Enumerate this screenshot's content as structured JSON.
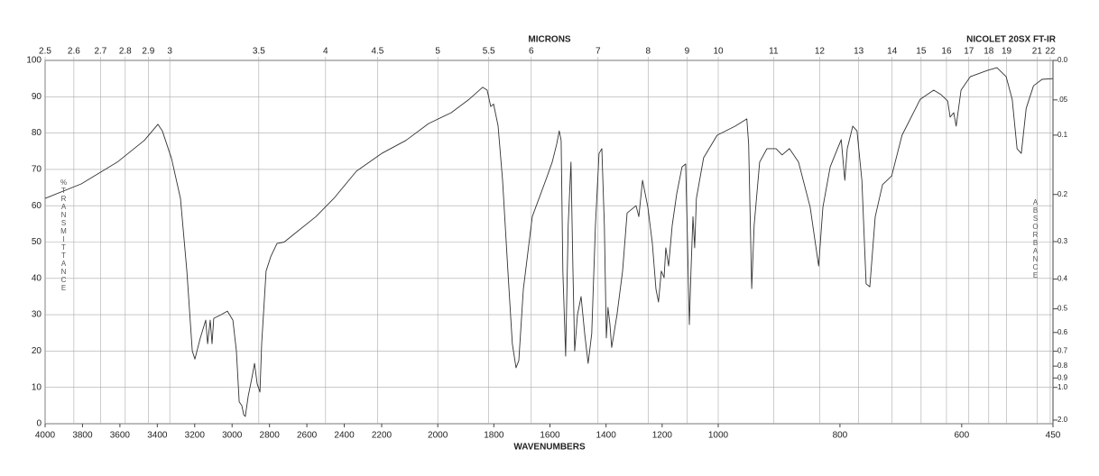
{
  "chart_data": {
    "type": "line",
    "title": "NICOLET 20SX FT-IR",
    "xlabel": "WAVENUMBERS",
    "x2label": "MICRONS",
    "ylabel": "%TRANSMITTANCE",
    "y2label": "ABSORBANCE",
    "xlim": [
      4000,
      450
    ],
    "x_scale_breaks": [
      2200,
      1000
    ],
    "ylim": [
      0,
      100
    ],
    "grid": true,
    "y2_scale": "absorbance",
    "xticks": [
      4000,
      3800,
      3600,
      3400,
      3200,
      3000,
      2800,
      2600,
      2400,
      2200,
      2000,
      1800,
      1600,
      1400,
      1200,
      1000,
      800,
      600,
      450
    ],
    "yticks": [
      0,
      10,
      20,
      30,
      40,
      50,
      60,
      70,
      80,
      90,
      100
    ],
    "x2ticks": [
      2.5,
      2.6,
      2.7,
      2.8,
      2.9,
      3,
      3.5,
      4,
      4.5,
      5,
      5.5,
      6,
      7,
      8,
      9,
      10,
      11,
      12,
      13,
      14,
      15,
      16,
      17,
      18,
      19,
      21,
      22
    ],
    "y2ticks": [
      {
        "value": 0,
        "label": "0.0"
      },
      {
        "value": 0.05,
        "label": ".05"
      },
      0.1,
      0.2,
      0.3,
      0.4,
      0.5,
      0.6,
      0.7,
      0.8,
      0.9,
      {
        "value": 1,
        "label": "1.0"
      },
      {
        "value": 2,
        "label": "2.0"
      }
    ],
    "x": [
      4000,
      3807,
      3614,
      3469,
      3397,
      3373,
      3324,
      3276,
      3242,
      3213,
      3199,
      3170,
      3141,
      3131,
      3117,
      3107,
      3098,
      3059,
      3025,
      2996,
      2977,
      2962,
      2948,
      2938,
      2929,
      2914,
      2895,
      2880,
      2866,
      2851,
      2842,
      2818,
      2793,
      2760,
      2721,
      2649,
      2552,
      2456,
      2335,
      2200,
      2113,
      2033,
      1952,
      1888,
      1840,
      1824,
      1811,
      1801,
      1785,
      1769,
      1750,
      1734,
      1721,
      1711,
      1695,
      1663,
      1615,
      1592,
      1576,
      1567,
      1560,
      1554,
      1544,
      1535,
      1525,
      1518,
      1512,
      1502,
      1489,
      1476,
      1464,
      1451,
      1438,
      1425,
      1415,
      1406,
      1399,
      1393,
      1386,
      1380,
      1361,
      1341,
      1325,
      1293,
      1283,
      1270,
      1251,
      1235,
      1222,
      1213,
      1203,
      1193,
      1187,
      1177,
      1164,
      1148,
      1129,
      1116,
      1110,
      1103,
      1097,
      1090,
      1084,
      1078,
      1052,
      1004,
      972,
      953,
      950,
      945,
      941,
      932,
      920,
      905,
      895,
      883,
      868,
      849,
      835,
      828,
      816,
      804,
      798,
      792,
      788,
      779,
      772,
      764,
      757,
      751,
      742,
      730,
      715,
      698,
      668,
      646,
      634,
      623,
      619,
      613,
      609,
      601,
      586,
      557,
      542,
      527,
      517,
      509,
      502,
      494,
      482,
      468,
      450
    ],
    "series": [
      {
        "color": "#333333",
        "values": [
          62,
          66,
          72,
          78,
          82.4,
          80.6,
          73,
          62,
          42,
          20,
          17.8,
          23.6,
          28.5,
          22,
          28.5,
          22,
          29,
          30,
          31,
          28.5,
          20,
          6,
          5,
          2.5,
          2,
          7.5,
          12.4,
          16.6,
          11,
          8.7,
          22,
          42,
          46,
          49.6,
          50,
          53,
          57,
          62,
          69.5,
          74.4,
          78,
          82.6,
          85.6,
          89.3,
          92.6,
          91.8,
          87.3,
          88,
          82,
          67,
          42,
          22,
          15.4,
          17.4,
          37,
          57,
          67,
          72,
          77,
          80.6,
          78,
          42,
          18.6,
          54.6,
          72,
          42,
          20,
          30,
          35,
          24.8,
          16.6,
          24.8,
          54.6,
          74.4,
          75.7,
          54.6,
          23.6,
          32,
          27.3,
          21,
          30,
          42,
          58,
          60,
          57,
          67,
          59.6,
          49.6,
          37,
          33.5,
          42,
          40.2,
          48.4,
          43.4,
          54.6,
          63.3,
          70.7,
          71.5,
          52,
          27.3,
          42,
          57,
          48.4,
          62,
          73.2,
          79.4,
          81.9,
          83.9,
          77,
          37.2,
          54.6,
          72,
          75.7,
          75.7,
          74,
          75.7,
          72,
          59.6,
          43.4,
          59.6,
          70.7,
          75.7,
          78.2,
          67,
          75.7,
          81.9,
          80.6,
          67,
          38.5,
          37.7,
          57,
          65.8,
          68.2,
          79.4,
          89.3,
          91.8,
          90.6,
          88.8,
          84.4,
          85.6,
          81.9,
          91.8,
          95.5,
          97.3,
          98,
          95.5,
          89.3,
          75.7,
          74.4,
          86.8,
          93,
          94.8,
          95
        ]
      }
    ]
  }
}
